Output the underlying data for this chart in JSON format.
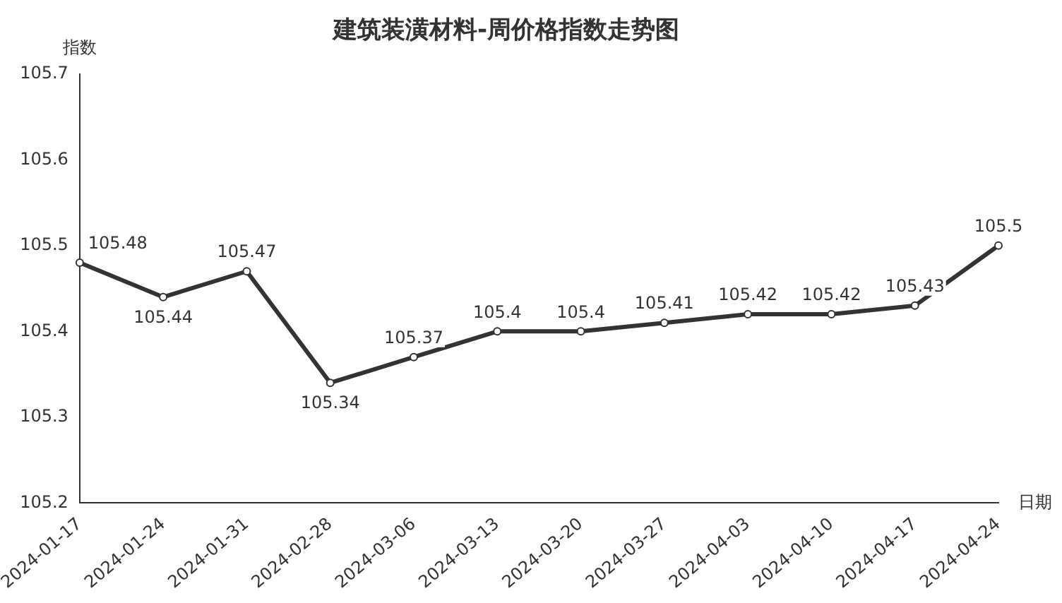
{
  "chart_data": {
    "type": "line",
    "title": "建筑装潢材料-周价格指数走势图",
    "xlabel": "日期",
    "ylabel": "指数",
    "categories": [
      "2024-01-17",
      "2024-01-24",
      "2024-01-31",
      "2024-02-28",
      "2024-03-06",
      "2024-03-13",
      "2024-03-20",
      "2024-03-27",
      "2024-04-03",
      "2024-04-10",
      "2024-04-17",
      "2024-04-24"
    ],
    "series": [
      {
        "color": "#333333",
        "values": [
          105.48,
          105.44,
          105.47,
          105.34,
          105.37,
          105.4,
          105.4,
          105.41,
          105.42,
          105.42,
          105.43,
          105.5
        ]
      }
    ],
    "ylim": [
      105.2,
      105.7
    ],
    "yticks": [
      105.2,
      105.3,
      105.4,
      105.5,
      105.6,
      105.7
    ],
    "grid": false,
    "legend": false,
    "marker": "circle",
    "line_style": "solid",
    "data_labels": true
  }
}
